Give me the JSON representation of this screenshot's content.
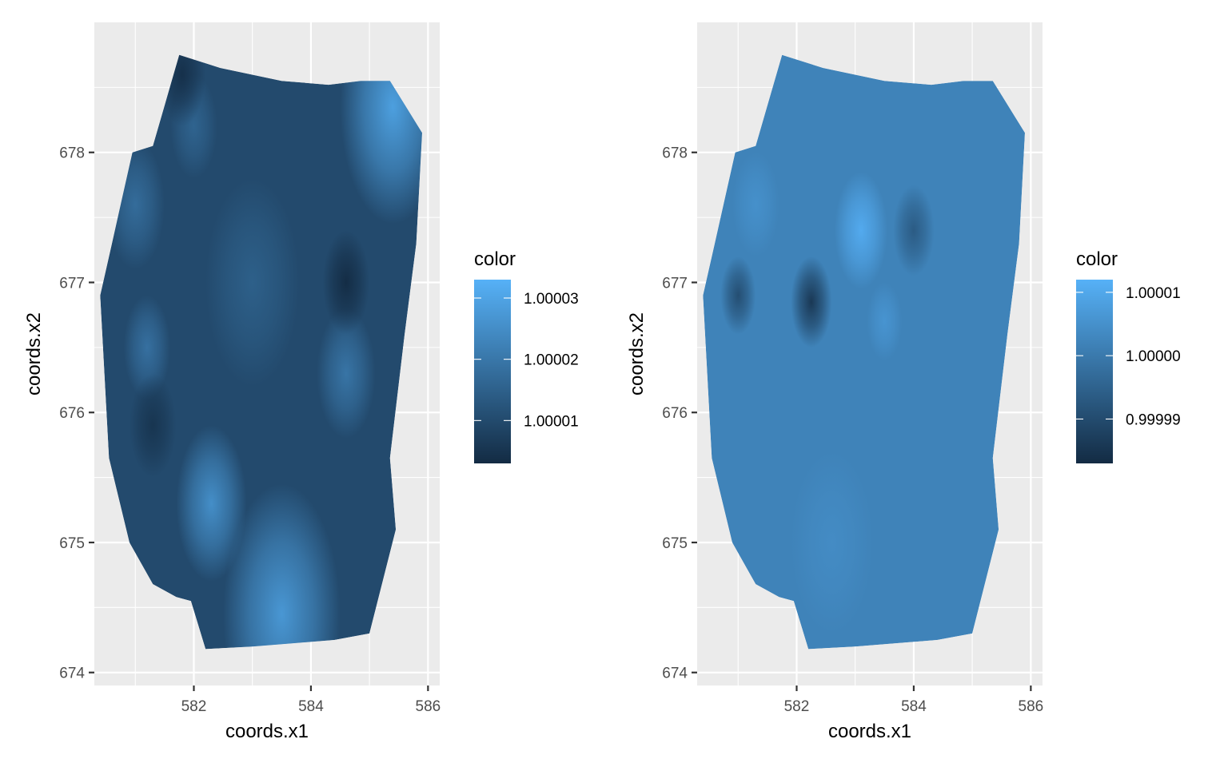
{
  "chart_data": [
    {
      "type": "heatmap",
      "title": "",
      "xlabel": "coords.x1",
      "ylabel": "coords.x2",
      "xlim": [
        580.3,
        586.2
      ],
      "ylim": [
        673.9,
        679.0
      ],
      "x_ticks": [
        582,
        584,
        586
      ],
      "x_tick_labels": [
        "582",
        "584",
        "586"
      ],
      "y_ticks": [
        674,
        675,
        676,
        677,
        678
      ],
      "y_tick_labels": [
        "674",
        "675",
        "676",
        "677",
        "678"
      ],
      "grid": true,
      "legend": {
        "title": "color",
        "position": "right",
        "range": [
          1.000003,
          1.000033
        ],
        "ticks": [
          1.00001,
          1.00002,
          1.00003
        ],
        "tick_labels": [
          "1.00001",
          "1.00002",
          "1.00003"
        ],
        "low_color": "#132B43",
        "high_color": "#56B1F7"
      },
      "region_outline": [
        [
          581.75,
          678.75
        ],
        [
          582.45,
          678.65
        ],
        [
          583.5,
          678.55
        ],
        [
          584.3,
          678.52
        ],
        [
          584.85,
          678.55
        ],
        [
          585.35,
          678.55
        ],
        [
          585.9,
          678.15
        ],
        [
          585.8,
          677.3
        ],
        [
          585.6,
          676.6
        ],
        [
          585.35,
          675.65
        ],
        [
          585.45,
          675.1
        ],
        [
          585.0,
          674.3
        ],
        [
          584.4,
          674.25
        ],
        [
          583.0,
          674.2
        ],
        [
          582.2,
          674.18
        ],
        [
          581.95,
          674.55
        ],
        [
          581.7,
          674.58
        ],
        [
          581.3,
          674.68
        ],
        [
          580.9,
          675.0
        ],
        [
          580.55,
          675.65
        ],
        [
          580.4,
          676.9
        ],
        [
          580.6,
          677.3
        ],
        [
          580.95,
          678.0
        ],
        [
          581.3,
          678.05
        ]
      ],
      "base_level": 1.00001,
      "features": [
        {
          "x": 585.4,
          "y": 678.35,
          "level": 1.00003,
          "radius": 0.9
        },
        {
          "x": 583.5,
          "y": 674.45,
          "level": 1.000028,
          "radius": 1.0
        },
        {
          "x": 582.3,
          "y": 675.3,
          "level": 1.000026,
          "radius": 0.6
        },
        {
          "x": 584.6,
          "y": 676.3,
          "level": 1.00002,
          "radius": 0.5
        },
        {
          "x": 581.2,
          "y": 676.5,
          "level": 1.000019,
          "radius": 0.4
        },
        {
          "x": 581.0,
          "y": 677.6,
          "level": 1.000018,
          "radius": 0.5
        },
        {
          "x": 582.0,
          "y": 678.2,
          "level": 1.000016,
          "radius": 0.4
        },
        {
          "x": 583.0,
          "y": 677.0,
          "level": 1.000015,
          "radius": 0.8
        },
        {
          "x": 584.6,
          "y": 677.0,
          "level": 1.000003,
          "radius": 0.4
        },
        {
          "x": 581.3,
          "y": 675.9,
          "level": 1.000005,
          "radius": 0.4
        },
        {
          "x": 581.8,
          "y": 678.6,
          "level": 1.000004,
          "radius": 0.4
        }
      ]
    },
    {
      "type": "heatmap",
      "title": "",
      "xlabel": "coords.x1",
      "ylabel": "coords.x2",
      "xlim": [
        580.3,
        586.2
      ],
      "ylim": [
        673.9,
        679.0
      ],
      "x_ticks": [
        582,
        584,
        586
      ],
      "x_tick_labels": [
        "582",
        "584",
        "586"
      ],
      "y_ticks": [
        674,
        675,
        676,
        677,
        678
      ],
      "y_tick_labels": [
        "674",
        "675",
        "676",
        "677",
        "678"
      ],
      "grid": true,
      "legend": {
        "title": "color",
        "position": "right",
        "range": [
          0.999983,
          1.000012
        ],
        "ticks": [
          0.99999,
          1.0,
          1.00001
        ],
        "tick_labels": [
          "0.99999",
          "1.00000",
          "1.00001"
        ],
        "low_color": "#132B43",
        "high_color": "#56B1F7"
      },
      "region_outline": [
        [
          581.75,
          678.75
        ],
        [
          582.45,
          678.65
        ],
        [
          583.5,
          678.55
        ],
        [
          584.3,
          678.52
        ],
        [
          584.85,
          678.55
        ],
        [
          585.35,
          678.55
        ],
        [
          585.9,
          678.15
        ],
        [
          585.8,
          677.3
        ],
        [
          585.6,
          676.6
        ],
        [
          585.35,
          675.65
        ],
        [
          585.45,
          675.1
        ],
        [
          585.0,
          674.3
        ],
        [
          584.4,
          674.25
        ],
        [
          583.0,
          674.2
        ],
        [
          582.2,
          674.18
        ],
        [
          581.95,
          674.55
        ],
        [
          581.7,
          674.58
        ],
        [
          581.3,
          674.68
        ],
        [
          580.9,
          675.0
        ],
        [
          580.55,
          675.65
        ],
        [
          580.4,
          676.9
        ],
        [
          580.6,
          677.3
        ],
        [
          580.95,
          678.0
        ],
        [
          581.3,
          678.05
        ]
      ],
      "base_level": 1.000002,
      "features": [
        {
          "x": 583.1,
          "y": 677.4,
          "level": 1.000011,
          "radius": 0.45
        },
        {
          "x": 583.5,
          "y": 676.7,
          "level": 1.000006,
          "radius": 0.3
        },
        {
          "x": 582.25,
          "y": 676.85,
          "level": 0.999985,
          "radius": 0.35
        },
        {
          "x": 581.0,
          "y": 676.9,
          "level": 0.99999,
          "radius": 0.3
        },
        {
          "x": 584.0,
          "y": 677.4,
          "level": 0.999993,
          "radius": 0.35
        },
        {
          "x": 581.3,
          "y": 677.6,
          "level": 1.000005,
          "radius": 0.4
        },
        {
          "x": 582.6,
          "y": 675.0,
          "level": 1.000004,
          "radius": 0.7
        }
      ]
    }
  ]
}
